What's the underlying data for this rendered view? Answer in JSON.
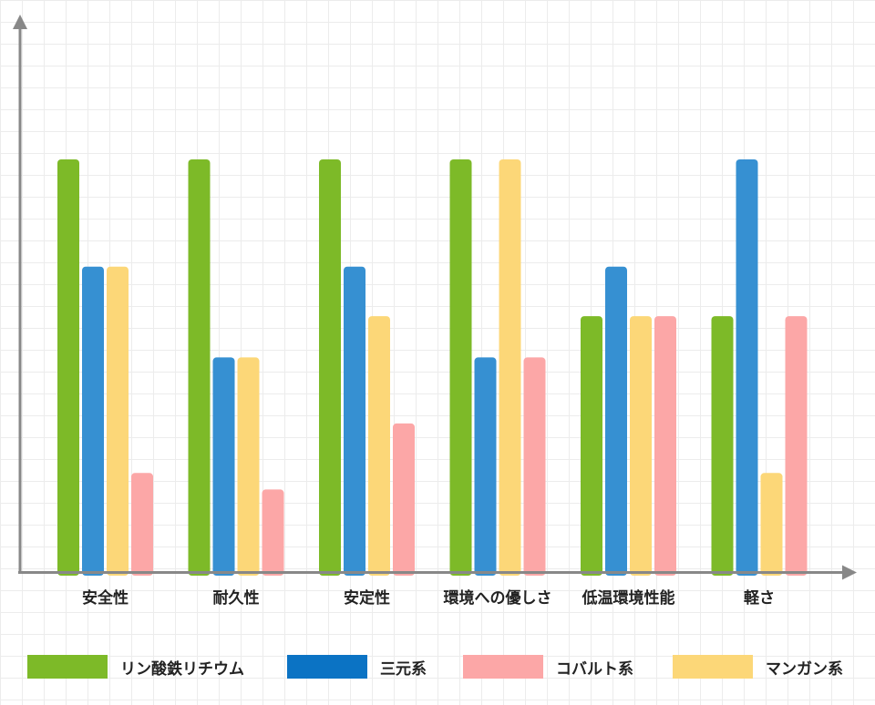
{
  "chart_data": {
    "type": "bar",
    "categories": [
      "安全性",
      "耐久性",
      "安定性",
      "環境への優しさ",
      "低温環境性能",
      "軽さ"
    ],
    "series": [
      {
        "name": "リン酸鉄リチウム",
        "color": "#7dba28",
        "values": [
          5,
          5,
          5,
          5,
          3.1,
          3.1
        ]
      },
      {
        "name": "三元系",
        "color": "#3690d2",
        "values": [
          3.7,
          2.6,
          3.7,
          2.6,
          3.7,
          5
        ]
      },
      {
        "name": "マンガン系",
        "color": "#fcd778",
        "values": [
          3.7,
          2.6,
          3.1,
          5,
          3.1,
          1.2
        ]
      },
      {
        "name": "コバルト系",
        "color": "#fca7a7",
        "values": [
          1.2,
          1,
          1.8,
          2.6,
          3.1,
          3.1
        ]
      }
    ],
    "ylim": [
      0,
      6.6
    ],
    "grid": true
  },
  "legend": {
    "items": [
      {
        "label": "リン酸鉄リチウム",
        "color": "#7dba28"
      },
      {
        "label": "三元系",
        "color": "#0b73c4"
      },
      {
        "label": "コバルト系",
        "color": "#fca7a7"
      },
      {
        "label": "マンガン系",
        "color": "#fcd778"
      }
    ]
  }
}
